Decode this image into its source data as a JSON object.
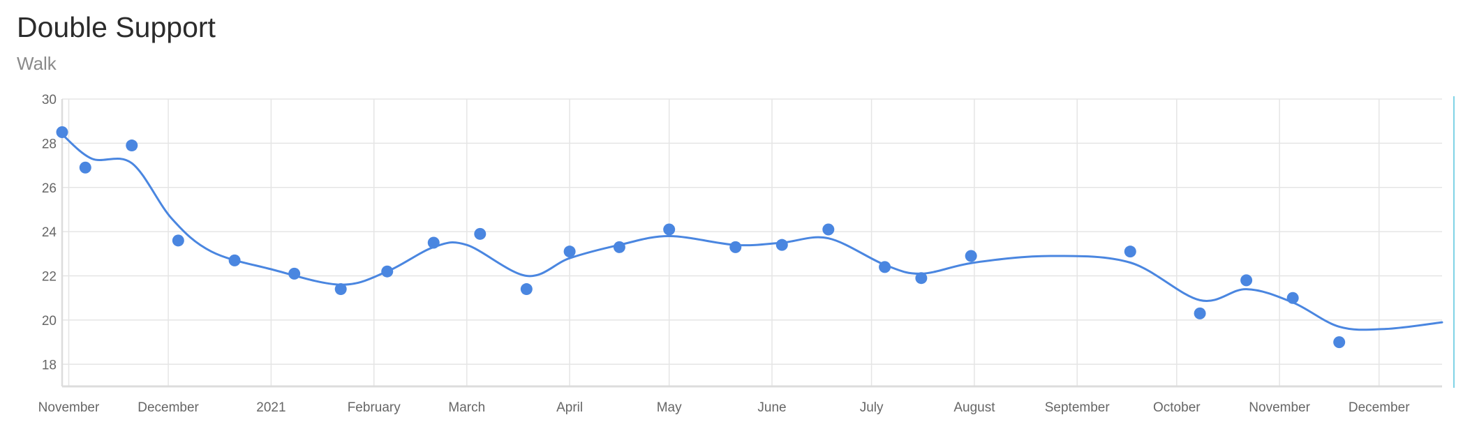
{
  "header": {
    "title": "Double Support",
    "subtitle": "Walk"
  },
  "colors": {
    "series": "#4a86e0",
    "grid": "#e5e5e5",
    "axis": "#dcdcdc",
    "right_edge": "#7fd3e6"
  },
  "chart_data": {
    "type": "line",
    "title": "Double Support",
    "subtitle": "Walk",
    "xlabel": "",
    "ylabel": "",
    "ylim": [
      17,
      30
    ],
    "xlim": [
      "2020-10-30",
      "2021-12-20"
    ],
    "y_ticks": [
      18,
      20,
      22,
      24,
      26,
      28,
      30
    ],
    "x_ticks": [
      {
        "date": "2020-11-01",
        "label": "November"
      },
      {
        "date": "2020-12-01",
        "label": "December"
      },
      {
        "date": "2021-01-01",
        "label": "2021"
      },
      {
        "date": "2021-02-01",
        "label": "February"
      },
      {
        "date": "2021-03-01",
        "label": "March"
      },
      {
        "date": "2021-04-01",
        "label": "April"
      },
      {
        "date": "2021-05-01",
        "label": "May"
      },
      {
        "date": "2021-06-01",
        "label": "June"
      },
      {
        "date": "2021-07-01",
        "label": "July"
      },
      {
        "date": "2021-08-01",
        "label": "August"
      },
      {
        "date": "2021-09-01",
        "label": "September"
      },
      {
        "date": "2021-10-01",
        "label": "October"
      },
      {
        "date": "2021-11-01",
        "label": "November"
      },
      {
        "date": "2021-12-01",
        "label": "December"
      }
    ],
    "grid": true,
    "legend": "none",
    "series": [
      {
        "points": [
          {
            "x": "2020-10-30",
            "y": 28.5
          },
          {
            "x": "2020-11-06",
            "y": 26.9
          },
          {
            "x": "2020-11-20",
            "y": 27.9
          },
          {
            "x": "2020-12-04",
            "y": 23.6
          },
          {
            "x": "2020-12-21",
            "y": 22.7
          },
          {
            "x": "2021-01-08",
            "y": 22.1
          },
          {
            "x": "2021-01-22",
            "y": 21.4
          },
          {
            "x": "2021-02-05",
            "y": 22.2
          },
          {
            "x": "2021-02-19",
            "y": 23.5
          },
          {
            "x": "2021-03-05",
            "y": 23.9
          },
          {
            "x": "2021-03-19",
            "y": 21.4
          },
          {
            "x": "2021-04-01",
            "y": 23.1
          },
          {
            "x": "2021-04-16",
            "y": 23.3
          },
          {
            "x": "2021-05-01",
            "y": 24.1
          },
          {
            "x": "2021-05-21",
            "y": 23.3
          },
          {
            "x": "2021-06-04",
            "y": 23.4
          },
          {
            "x": "2021-06-18",
            "y": 24.1
          },
          {
            "x": "2021-07-05",
            "y": 22.4
          },
          {
            "x": "2021-07-16",
            "y": 21.9
          },
          {
            "x": "2021-07-31",
            "y": 22.9
          },
          {
            "x": "2021-09-17",
            "y": 23.1
          },
          {
            "x": "2021-10-08",
            "y": 20.3
          },
          {
            "x": "2021-10-22",
            "y": 21.8
          },
          {
            "x": "2021-11-05",
            "y": 21.0
          },
          {
            "x": "2021-11-19",
            "y": 19.0
          }
        ],
        "trend": [
          {
            "x": "2020-10-30",
            "y": 28.4
          },
          {
            "x": "2020-11-08",
            "y": 27.3
          },
          {
            "x": "2020-11-20",
            "y": 27.1
          },
          {
            "x": "2020-12-02",
            "y": 24.6
          },
          {
            "x": "2020-12-14",
            "y": 23.1
          },
          {
            "x": "2021-01-01",
            "y": 22.3
          },
          {
            "x": "2021-01-22",
            "y": 21.6
          },
          {
            "x": "2021-02-05",
            "y": 22.2
          },
          {
            "x": "2021-02-19",
            "y": 23.3
          },
          {
            "x": "2021-03-01",
            "y": 23.4
          },
          {
            "x": "2021-03-19",
            "y": 22.0
          },
          {
            "x": "2021-04-01",
            "y": 22.8
          },
          {
            "x": "2021-04-16",
            "y": 23.4
          },
          {
            "x": "2021-05-01",
            "y": 23.8
          },
          {
            "x": "2021-05-21",
            "y": 23.4
          },
          {
            "x": "2021-06-04",
            "y": 23.5
          },
          {
            "x": "2021-06-18",
            "y": 23.7
          },
          {
            "x": "2021-07-05",
            "y": 22.5
          },
          {
            "x": "2021-07-16",
            "y": 22.1
          },
          {
            "x": "2021-08-01",
            "y": 22.6
          },
          {
            "x": "2021-08-24",
            "y": 22.9
          },
          {
            "x": "2021-09-17",
            "y": 22.6
          },
          {
            "x": "2021-10-08",
            "y": 20.9
          },
          {
            "x": "2021-10-22",
            "y": 21.4
          },
          {
            "x": "2021-11-05",
            "y": 20.8
          },
          {
            "x": "2021-11-19",
            "y": 19.7
          },
          {
            "x": "2021-12-03",
            "y": 19.6
          },
          {
            "x": "2021-12-20",
            "y": 19.9
          }
        ]
      }
    ]
  }
}
